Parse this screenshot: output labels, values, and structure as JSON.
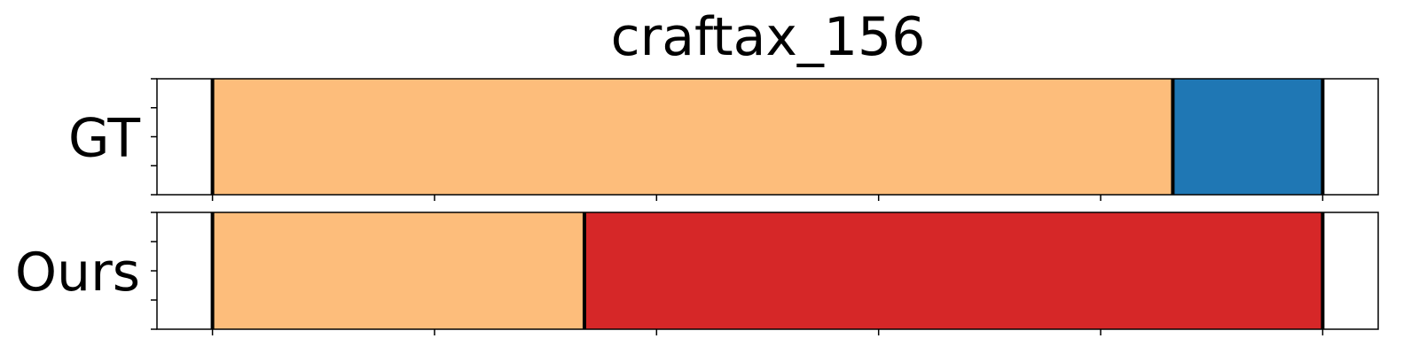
{
  "chart_data": {
    "type": "segmentation-timeline",
    "title": "craftax_156",
    "xlim": [
      -0.5,
      10.5
    ],
    "x_ticks": [
      0,
      2,
      4,
      6,
      8,
      10
    ],
    "y_ticks_per_row": 5,
    "rows": [
      {
        "label": "GT",
        "segments": [
          {
            "start": 0,
            "end": 8.65,
            "color": "#fdbd7b"
          },
          {
            "start": 8.65,
            "end": 10,
            "color": "#1f77b4"
          }
        ],
        "boundaries": [
          0,
          8.65,
          10
        ]
      },
      {
        "label": "Ours",
        "segments": [
          {
            "start": 0,
            "end": 3.35,
            "color": "#fdbd7b"
          },
          {
            "start": 3.35,
            "end": 10,
            "color": "#d62728"
          }
        ],
        "boundaries": [
          0,
          3.35,
          10
        ]
      }
    ]
  }
}
